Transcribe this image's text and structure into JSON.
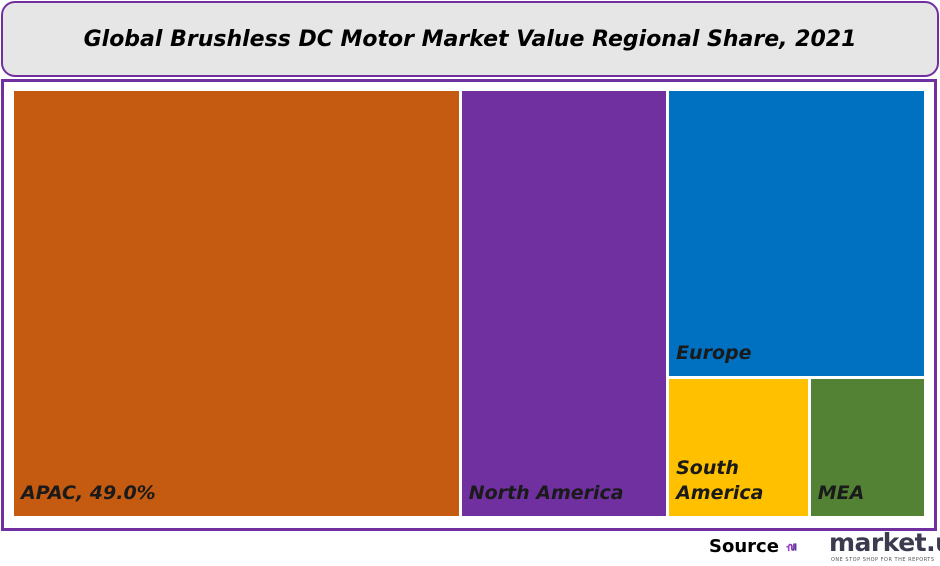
{
  "chart_data": {
    "type": "treemap",
    "title": "Global Brushless DC Motor Market Value Regional Share, 2021",
    "unit": "%",
    "items": [
      {
        "name": "APAC",
        "label": "APAC, 49.0%",
        "value": 49.0,
        "color": "#c55a11"
      },
      {
        "name": "North America",
        "label": "North America",
        "value": 22.7,
        "color": "#7030a0"
      },
      {
        "name": "Europe",
        "label": "Europe",
        "value": 18.9,
        "color": "#0070c0"
      },
      {
        "name": "South America",
        "label": "South America",
        "value": 5.0,
        "color": "#ffc000"
      },
      {
        "name": "MEA",
        "label": "MEA",
        "value": 4.0,
        "color": "#548235"
      }
    ]
  },
  "footer": {
    "source_label": "Source",
    "brand": "market.us",
    "tagline": "ONE STOP SHOP FOR THE REPORTS"
  },
  "colors": {
    "accent": "#7030a0",
    "title_bg": "#e7e6e6"
  }
}
